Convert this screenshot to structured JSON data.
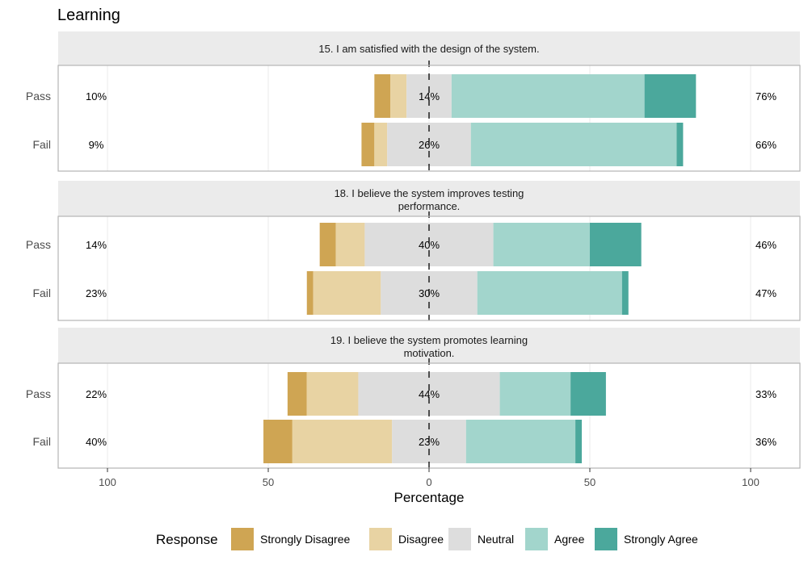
{
  "chart_data": {
    "type": "bar",
    "subtype": "diverging-stacked-likert",
    "title": "Learning",
    "xlabel": "Percentage",
    "xlim": [
      -115,
      115
    ],
    "x_ticks": [
      -100,
      -50,
      0,
      50,
      100
    ],
    "x_tick_labels": [
      "100",
      "50",
      "0",
      "50",
      "100"
    ],
    "grid": true,
    "legend_position": "bottom",
    "legend_title": "Response",
    "categories": [
      "Strongly Disagree",
      "Disagree",
      "Neutral",
      "Agree",
      "Strongly Agree"
    ],
    "colors": {
      "Strongly Disagree": "#CFA553",
      "Disagree": "#E8D3A3",
      "Neutral": "#DDDDDD",
      "Agree": "#A2D5CC",
      "Strongly Agree": "#4BA89C"
    },
    "facets": [
      {
        "title": "15. I am satisfied with the design of the system.",
        "rows": [
          {
            "group": "Pass",
            "values": [
              5,
              5,
              14,
              60,
              16
            ],
            "left_label": "10%",
            "center_label": "14%",
            "right_label": "76%"
          },
          {
            "group": "Fail",
            "values": [
              4,
              4,
              26,
              64,
              2
            ],
            "left_label": "9%",
            "center_label": "26%",
            "right_label": "66%"
          }
        ]
      },
      {
        "title": "18. I believe the system improves testing performance.",
        "rows": [
          {
            "group": "Pass",
            "values": [
              5,
              9,
              40,
              30,
              16
            ],
            "left_label": "14%",
            "center_label": "40%",
            "right_label": "46%"
          },
          {
            "group": "Fail",
            "values": [
              2,
              21,
              30,
              45,
              2
            ],
            "left_label": "23%",
            "center_label": "30%",
            "right_label": "47%"
          }
        ]
      },
      {
        "title": "19. I believe the system promotes learning motivation.",
        "rows": [
          {
            "group": "Pass",
            "values": [
              6,
              16,
              44,
              22,
              11
            ],
            "left_label": "22%",
            "center_label": "44%",
            "right_label": "33%"
          },
          {
            "group": "Fail",
            "values": [
              9,
              31,
              23,
              34,
              2
            ],
            "left_label": "40%",
            "center_label": "23%",
            "right_label": "36%"
          }
        ]
      }
    ]
  }
}
